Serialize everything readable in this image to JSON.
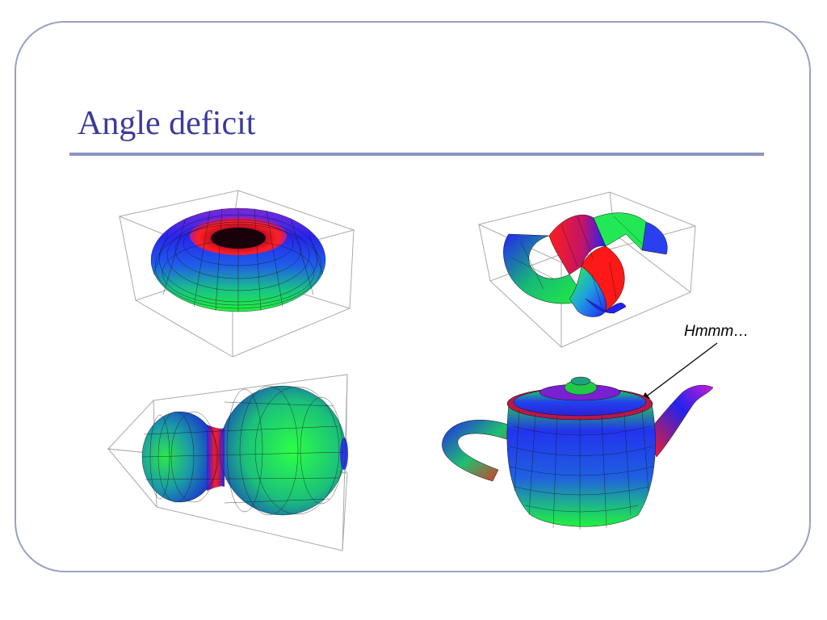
{
  "slide": {
    "title": "Angle deficit",
    "annotation": "Hmmm…"
  },
  "figures": [
    {
      "name": "torus",
      "colors": [
        "#ff1a1a",
        "#2222ff",
        "#1aff3a"
      ]
    },
    {
      "name": "twisted-surface",
      "colors": [
        "#ff1a1a",
        "#2222ff",
        "#1aff3a"
      ]
    },
    {
      "name": "peanut-surface",
      "colors": [
        "#ff1a1a",
        "#2222ff",
        "#1aff3a"
      ]
    },
    {
      "name": "teapot",
      "colors": [
        "#ff1a1a",
        "#2222ff",
        "#1aff3a"
      ]
    }
  ],
  "colors": {
    "title": "#3b3b9c",
    "rule": "#8d93c3",
    "frame": "#9aa0c4",
    "bounding_box": "#aaaaaa",
    "mesh": "#111111"
  }
}
